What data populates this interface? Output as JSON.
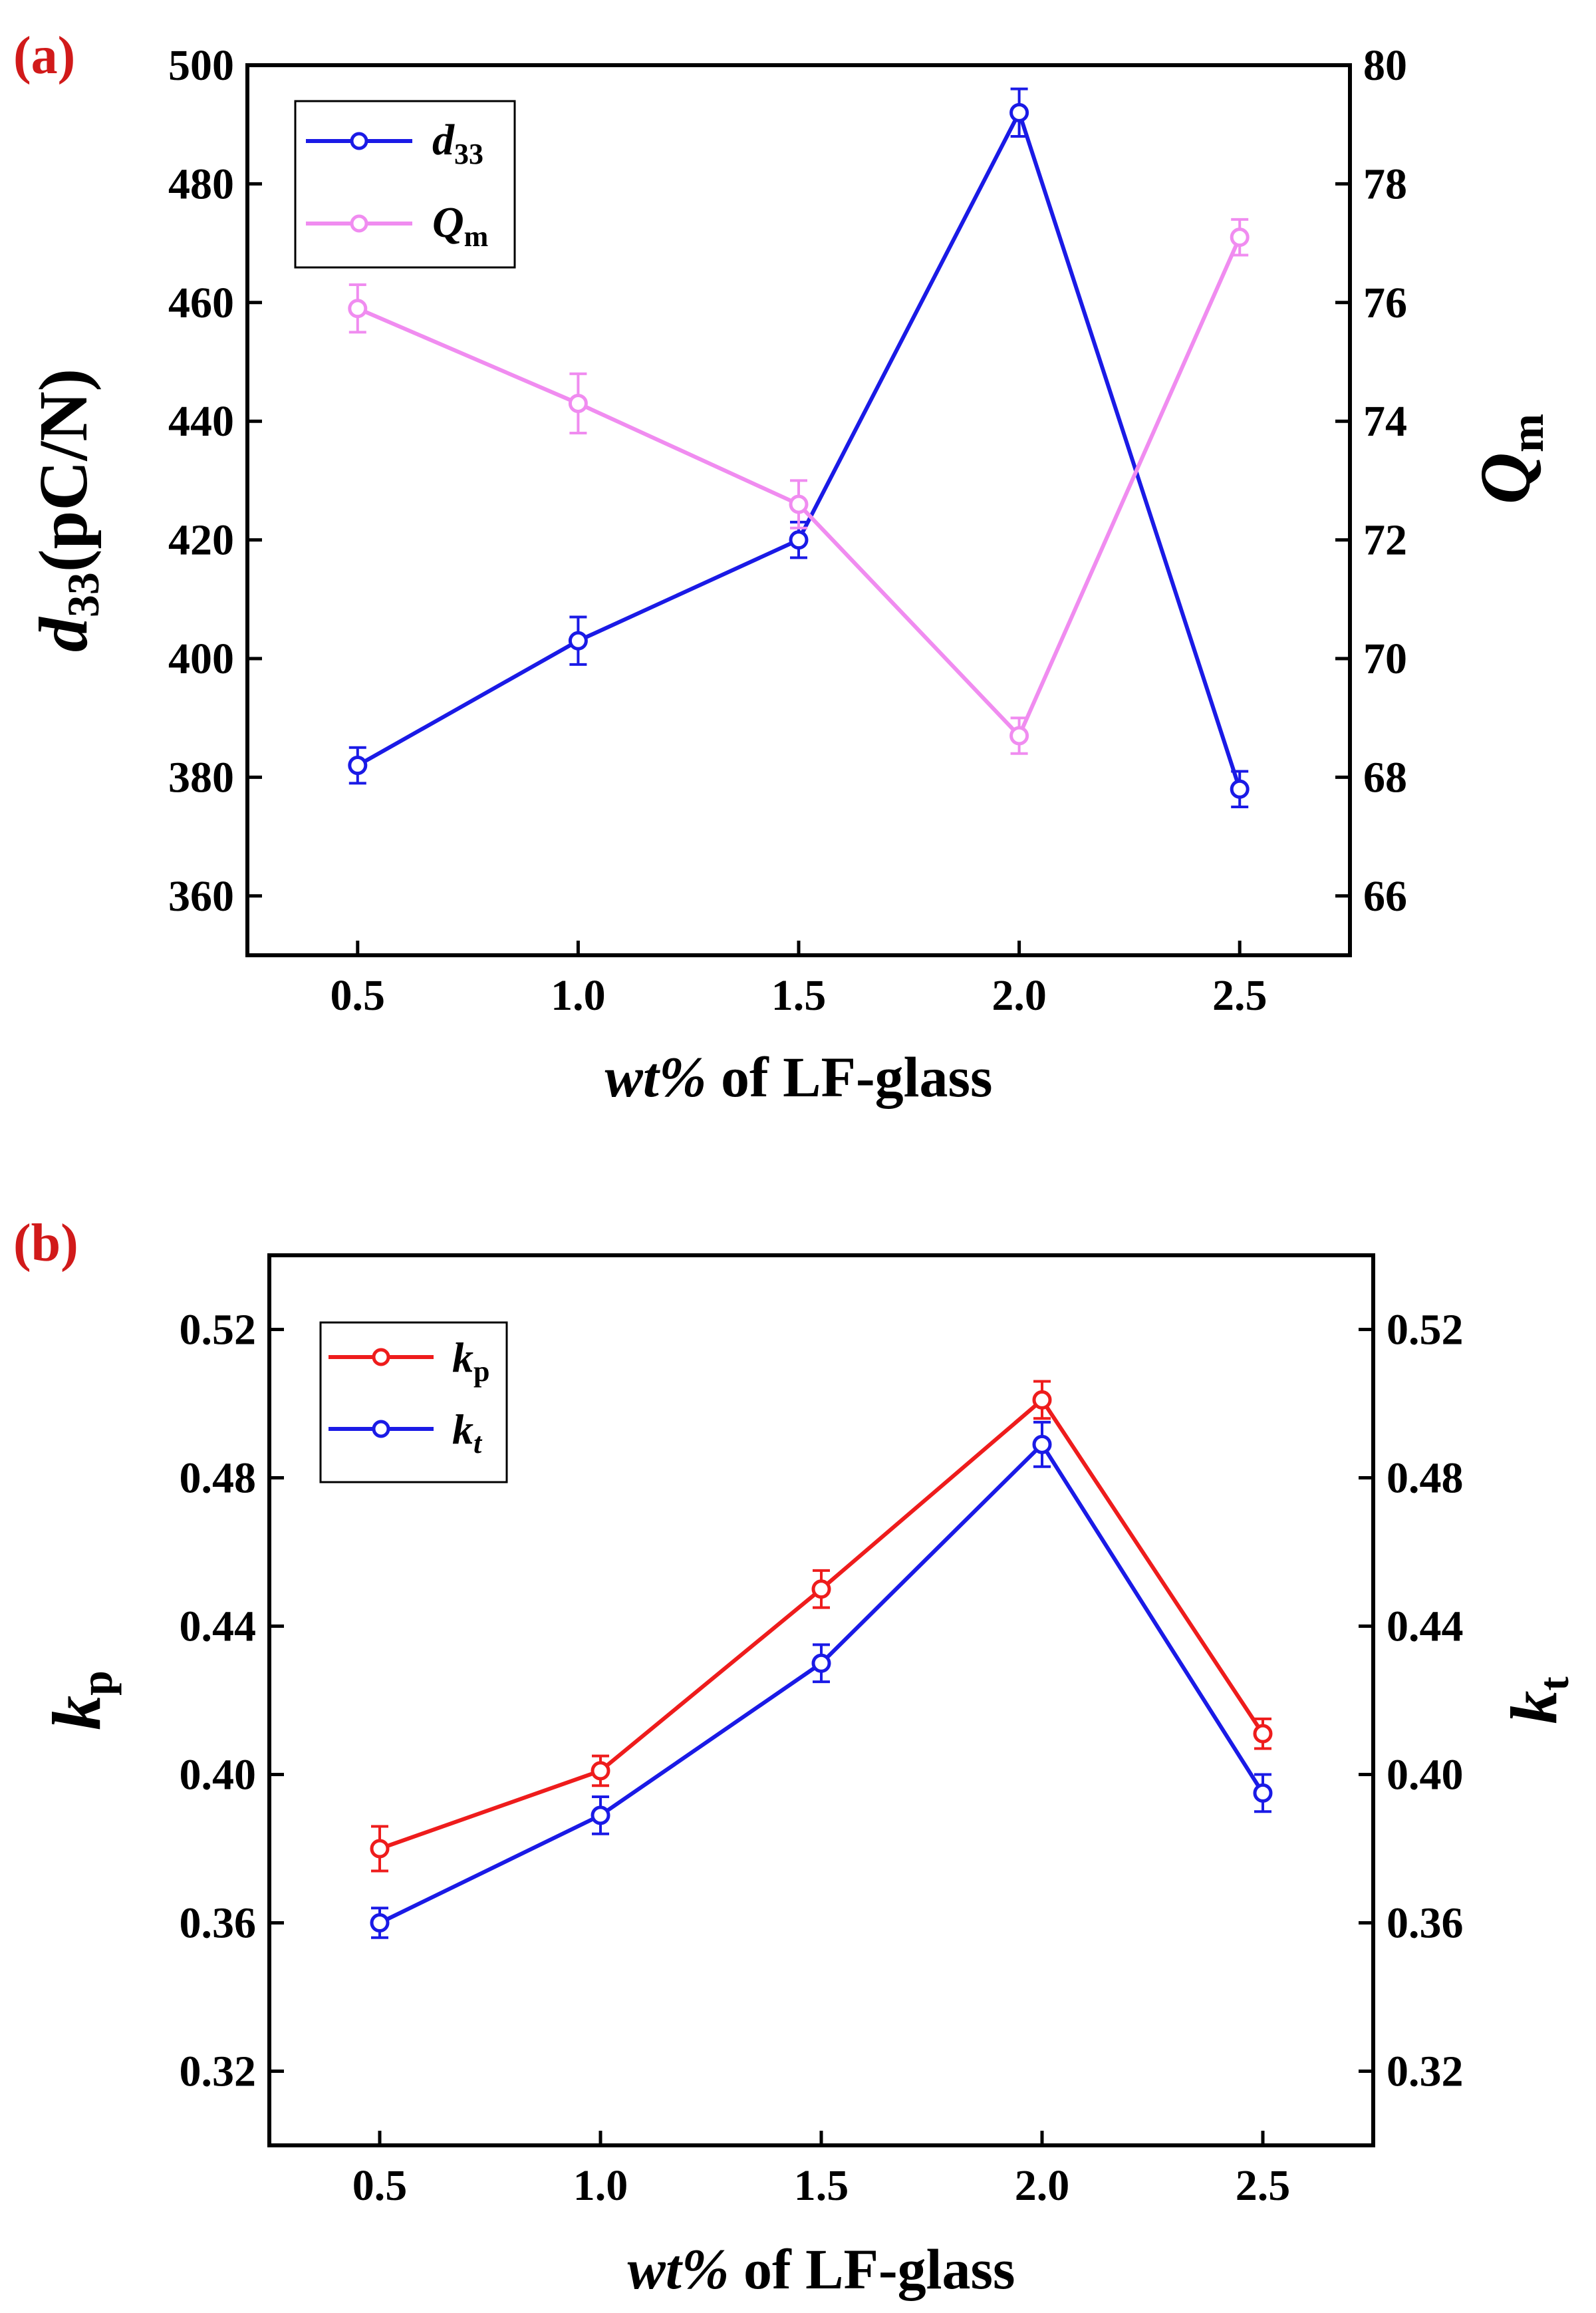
{
  "chart_data": [
    {
      "type": "line",
      "panel_label": "(a)",
      "xlabel_italic": "wt%",
      "xlabel_rest": " of LF-glass",
      "x": [
        0.5,
        1.0,
        1.5,
        2.0,
        2.5
      ],
      "x_ticks": [
        "0.5",
        "1.0",
        "1.5",
        "2.0",
        "2.5"
      ],
      "xlim": [
        0.25,
        2.75
      ],
      "ylabel_left": {
        "main": "d",
        "sub": "33",
        "rest": "(pC/N)"
      },
      "ylabel_right": {
        "main": "Q",
        "sub": "m"
      },
      "ylim_left": [
        350,
        500
      ],
      "ylim_right": [
        65,
        80
      ],
      "y_ticks_left": [
        "360",
        "380",
        "400",
        "420",
        "440",
        "460",
        "480",
        "500"
      ],
      "y_ticks_right": [
        "66",
        "68",
        "70",
        "72",
        "74",
        "76",
        "78",
        "80"
      ],
      "grid": false,
      "legend_position": "top-left",
      "series": [
        {
          "name": "d",
          "name_sub": "33",
          "axis": "left",
          "color": "#1a1ae6",
          "values": [
            382,
            403,
            420,
            492,
            378
          ],
          "errors": [
            3,
            4,
            3,
            4,
            3
          ]
        },
        {
          "name": "Q",
          "name_sub": "m",
          "axis": "right",
          "color": "#f08cf0",
          "values": [
            75.9,
            74.3,
            72.6,
            68.7,
            77.1
          ],
          "errors": [
            0.4,
            0.5,
            0.4,
            0.3,
            0.3
          ]
        }
      ]
    },
    {
      "type": "line",
      "panel_label": "(b)",
      "xlabel_italic": "wt%",
      "xlabel_rest": " of LF-glass",
      "x": [
        0.5,
        1.0,
        1.5,
        2.0,
        2.5
      ],
      "x_ticks": [
        "0.5",
        "1.0",
        "1.5",
        "2.0",
        "2.5"
      ],
      "xlim": [
        0.25,
        2.75
      ],
      "ylabel_left": {
        "main": "k",
        "sub": "p"
      },
      "ylabel_right": {
        "main": "k",
        "sub": "t"
      },
      "ylim_left": [
        0.3,
        0.54
      ],
      "ylim_right": [
        0.3,
        0.54
      ],
      "y_ticks_left": [
        "0.32",
        "0.36",
        "0.40",
        "0.44",
        "0.48",
        "0.52"
      ],
      "y_ticks_right": [
        "0.32",
        "0.36",
        "0.40",
        "0.44",
        "0.48",
        "0.52"
      ],
      "grid": false,
      "legend_position": "top-left",
      "series": [
        {
          "name": "k",
          "name_sub": "p",
          "axis": "left",
          "color": "#ee1c1c",
          "values": [
            0.38,
            0.401,
            0.45,
            0.501,
            0.411
          ],
          "errors": [
            0.006,
            0.004,
            0.005,
            0.005,
            0.004
          ]
        },
        {
          "name": "k",
          "name_sub": "t",
          "axis": "left",
          "color": "#1a1ae6",
          "values": [
            0.36,
            0.389,
            0.43,
            0.489,
            0.395
          ],
          "errors": [
            0.004,
            0.005,
            0.005,
            0.006,
            0.005
          ]
        }
      ]
    }
  ]
}
